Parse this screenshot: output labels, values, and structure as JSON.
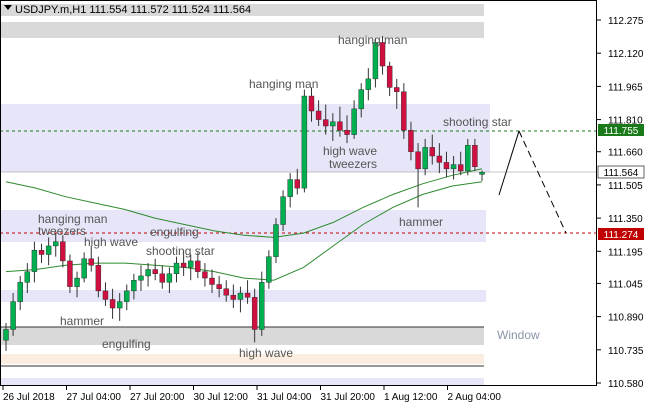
{
  "window": {
    "symbol_info": "USDJPY.m,H1  111.554 111.572 111.524 111.564",
    "corner_label": "Window"
  },
  "colors": {
    "bull": "#00b050",
    "bear": "#d01040",
    "zone_gray": "#d9d9d9",
    "zone_blue": "#e6e6f8",
    "zone_beige": "#fbeee0",
    "ma_green": "#2e8b2e",
    "resistance_line": "#1a7a1a",
    "support_line": "#c00000",
    "price_badge_green": "#1a7a1a",
    "price_badge_red": "#c00000",
    "current_price_bg": "#ffffff"
  },
  "axis": {
    "price_labels": [
      "112.275",
      "112.120",
      "111.965",
      "111.810",
      "111.660",
      "111.505",
      "111.350",
      "111.195",
      "111.045",
      "110.890",
      "110.735",
      "110.580"
    ],
    "time_labels": [
      "26 Jul 2018",
      "27 Jul 04:00",
      "27 Jul 20:00",
      "30 Jul 12:00",
      "31 Jul 04:00",
      "31 Jul 20:00",
      "1 Aug 12:00",
      "2 Aug 04:00"
    ]
  },
  "price_markers": {
    "resistance": "111.755",
    "current": "111.564",
    "support": "111.274"
  },
  "annotations": {
    "hanging_man_top": "hanging man",
    "hanging_man_mid": "hanging man",
    "shooting_star_right": "shooting star",
    "high_wave_mid": "high wave",
    "tweezers_mid": "tweezers",
    "hammer_right": "hammer",
    "hanging_man_left": "hanging man",
    "tweezers_left": "tweezers",
    "high_wave_left": "high wave",
    "engulfing_mid": "engulfing",
    "shooting_star_mid": "shooting star",
    "hammer_left": "hammer",
    "engulfing_bottom": "engulfing",
    "high_wave_bottom": "high wave"
  },
  "chart_data": {
    "type": "candlestick",
    "symbol": "USDJPY.m",
    "timeframe": "H1",
    "ohlc_current": {
      "open": 111.554,
      "high": 111.572,
      "low": 111.524,
      "close": 111.564
    },
    "ylim": [
      110.58,
      112.32
    ],
    "levels": {
      "resistance": 111.755,
      "support": 111.274,
      "current": 111.564
    },
    "projection": [
      111.5,
      111.755,
      111.274
    ],
    "moving_averages": [
      {
        "values": [
          111.52,
          111.49,
          111.45,
          111.42,
          111.39,
          111.35,
          111.32,
          111.29,
          111.27,
          111.26,
          111.28,
          111.33,
          111.4,
          111.46,
          111.51,
          111.55,
          111.58
        ]
      },
      {
        "values": [
          111.1,
          111.11,
          111.13,
          111.14,
          111.14,
          111.13,
          111.12,
          111.1,
          111.07,
          111.06,
          111.12,
          111.22,
          111.32,
          111.4,
          111.46,
          111.5,
          111.52
        ]
      }
    ],
    "candles": [
      [
        110.78,
        110.86,
        110.73,
        110.83
      ],
      [
        110.83,
        111.0,
        110.8,
        110.96
      ],
      [
        110.96,
        111.08,
        110.92,
        111.05
      ],
      [
        111.05,
        111.14,
        111.0,
        111.1
      ],
      [
        111.1,
        111.24,
        111.05,
        111.2
      ],
      [
        111.2,
        111.23,
        111.14,
        111.18
      ],
      [
        111.18,
        111.26,
        111.13,
        111.22
      ],
      [
        111.22,
        111.28,
        111.17,
        111.24
      ],
      [
        111.24,
        111.27,
        111.12,
        111.15
      ],
      [
        111.15,
        111.18,
        111.0,
        111.03
      ],
      [
        111.03,
        111.1,
        110.98,
        111.07
      ],
      [
        111.07,
        111.19,
        111.05,
        111.16
      ],
      [
        111.16,
        111.22,
        111.1,
        111.13
      ],
      [
        111.13,
        111.17,
        110.98,
        111.01
      ],
      [
        111.01,
        111.05,
        110.94,
        110.97
      ],
      [
        110.97,
        111.02,
        110.88,
        110.93
      ],
      [
        110.93,
        111.0,
        110.87,
        110.96
      ],
      [
        110.96,
        111.04,
        110.92,
        111.01
      ],
      [
        111.01,
        111.09,
        110.97,
        111.06
      ],
      [
        111.06,
        111.13,
        111.01,
        111.08
      ],
      [
        111.08,
        111.14,
        111.03,
        111.11
      ],
      [
        111.11,
        111.16,
        111.06,
        111.09
      ],
      [
        111.09,
        111.13,
        111.02,
        111.05
      ],
      [
        111.05,
        111.12,
        111.0,
        111.09
      ],
      [
        111.09,
        111.17,
        111.05,
        111.14
      ],
      [
        111.14,
        111.2,
        111.08,
        111.12
      ],
      [
        111.12,
        111.18,
        111.06,
        111.15
      ],
      [
        111.15,
        111.19,
        111.07,
        111.1
      ],
      [
        111.1,
        111.14,
        111.03,
        111.07
      ],
      [
        111.07,
        111.11,
        111.0,
        111.04
      ],
      [
        111.04,
        111.08,
        110.98,
        111.02
      ],
      [
        111.02,
        111.06,
        110.96,
        110.99
      ],
      [
        110.99,
        111.04,
        110.93,
        110.97
      ],
      [
        110.97,
        111.03,
        110.91,
        111.0
      ],
      [
        111.0,
        111.06,
        110.95,
        110.98
      ],
      [
        110.98,
        111.02,
        110.77,
        110.83
      ],
      [
        110.83,
        111.1,
        110.8,
        111.05
      ],
      [
        111.05,
        111.2,
        111.02,
        111.17
      ],
      [
        111.17,
        111.35,
        111.14,
        111.32
      ],
      [
        111.32,
        111.48,
        111.29,
        111.45
      ],
      [
        111.45,
        111.56,
        111.4,
        111.53
      ],
      [
        111.53,
        111.58,
        111.46,
        111.49
      ],
      [
        111.49,
        111.95,
        111.47,
        111.92
      ],
      [
        111.92,
        111.96,
        111.8,
        111.85
      ],
      [
        111.85,
        111.9,
        111.78,
        111.81
      ],
      [
        111.81,
        111.88,
        111.74,
        111.78
      ],
      [
        111.78,
        111.84,
        111.71,
        111.8
      ],
      [
        111.8,
        111.87,
        111.73,
        111.76
      ],
      [
        111.76,
        111.83,
        111.7,
        111.74
      ],
      [
        111.74,
        111.9,
        111.72,
        111.86
      ],
      [
        111.86,
        111.98,
        111.82,
        111.95
      ],
      [
        111.95,
        112.05,
        111.9,
        112.0
      ],
      [
        112.0,
        112.19,
        111.96,
        112.17
      ],
      [
        112.17,
        112.2,
        112.02,
        112.06
      ],
      [
        112.06,
        112.08,
        111.92,
        111.96
      ],
      [
        111.96,
        112.0,
        111.86,
        111.94
      ],
      [
        111.94,
        111.98,
        111.72,
        111.76
      ],
      [
        111.76,
        111.8,
        111.62,
        111.66
      ],
      [
        111.66,
        111.7,
        111.4,
        111.58
      ],
      [
        111.58,
        111.72,
        111.55,
        111.68
      ],
      [
        111.68,
        111.74,
        111.6,
        111.64
      ],
      [
        111.64,
        111.7,
        111.56,
        111.61
      ],
      [
        111.61,
        111.66,
        111.54,
        111.58
      ],
      [
        111.58,
        111.64,
        111.53,
        111.6
      ],
      [
        111.6,
        111.66,
        111.55,
        111.57
      ],
      [
        111.57,
        111.72,
        111.55,
        111.69
      ],
      [
        111.69,
        111.72,
        111.57,
        111.59
      ],
      [
        111.554,
        111.572,
        111.524,
        111.564
      ]
    ]
  }
}
